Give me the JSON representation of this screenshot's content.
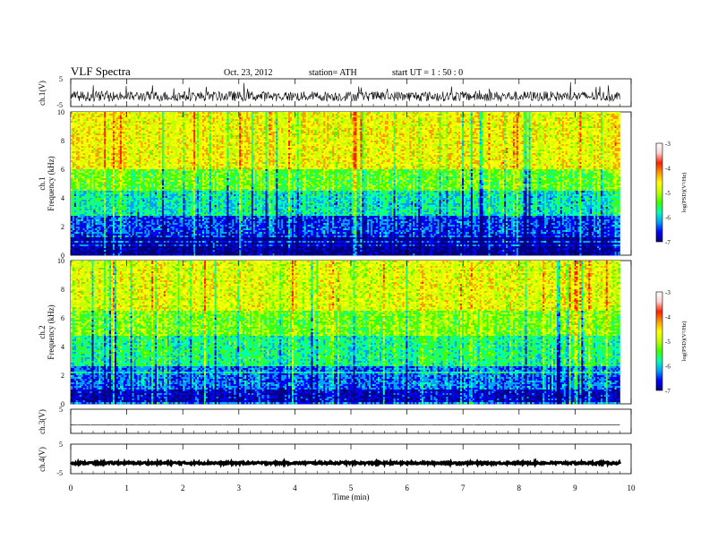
{
  "header": {
    "title": "VLF  Spectra",
    "date": "Oct. 23, 2012",
    "station": "station= ATH",
    "start": "start  UT  =   1  : 50 : 0"
  },
  "chart_data": [
    {
      "type": "line",
      "name": "ch1-waveform",
      "ylabel": "ch.1(V)",
      "ylim": [
        -5,
        5
      ],
      "y_ticks": [
        "5",
        "-5"
      ],
      "baseline": -1.3,
      "noise_amplitude": 1.8
    },
    {
      "type": "heatmap",
      "name": "ch1-spectrogram",
      "ylabel_lines": [
        "ch.1",
        "Frequency  (kHz)"
      ],
      "ylim": [
        0,
        10
      ],
      "y_ticks": [
        "0",
        "2",
        "4",
        "6",
        "8",
        "10"
      ],
      "colorbar": {
        "label": "log(PSD)(V²/Hz)",
        "range": [
          -7,
          -3
        ],
        "ticks": [
          "-3",
          "-4",
          "-5",
          "-6",
          "-7"
        ],
        "colors": [
          "#000080",
          "#0000ff",
          "#00a0ff",
          "#00ffb0",
          "#40ff00",
          "#c0ff00",
          "#ffff00",
          "#ff9900",
          "#ff2000",
          "#ffd0d0",
          "#ffffff"
        ]
      },
      "bands": [
        {
          "f_min": 0.0,
          "f_max": 1.2,
          "log_psd": -6.8
        },
        {
          "f_min": 1.2,
          "f_max": 2.8,
          "log_psd": -6.2
        },
        {
          "f_min": 2.8,
          "f_max": 4.5,
          "log_psd": -5.5
        },
        {
          "f_min": 4.5,
          "f_max": 6.0,
          "log_psd": -4.9
        },
        {
          "f_min": 6.0,
          "f_max": 10.0,
          "log_psd": -4.2
        }
      ]
    },
    {
      "type": "heatmap",
      "name": "ch2-spectrogram",
      "ylabel_lines": [
        "ch.2",
        "Frequency  (kHz)"
      ],
      "ylim": [
        0,
        10
      ],
      "y_ticks": [
        "0",
        "2",
        "4",
        "6",
        "8",
        "10"
      ],
      "colorbar": {
        "label": "log(PSD)(V²/Hz)",
        "range": [
          -7,
          -3
        ],
        "ticks": [
          "-3",
          "-4",
          "-5",
          "-6",
          "-7"
        ],
        "colors": [
          "#000080",
          "#0000ff",
          "#00a0ff",
          "#00ffb0",
          "#40ff00",
          "#c0ff00",
          "#ffff00",
          "#ff9900",
          "#ff2000",
          "#ffd0d0",
          "#ffffff"
        ]
      },
      "bands": [
        {
          "f_min": 0.0,
          "f_max": 1.0,
          "log_psd": -6.5
        },
        {
          "f_min": 1.0,
          "f_max": 2.6,
          "log_psd": -6.0
        },
        {
          "f_min": 2.6,
          "f_max": 4.8,
          "log_psd": -5.3
        },
        {
          "f_min": 4.8,
          "f_max": 6.5,
          "log_psd": -4.8
        },
        {
          "f_min": 6.5,
          "f_max": 10.0,
          "log_psd": -4.3
        }
      ]
    },
    {
      "type": "line",
      "name": "ch3-waveform",
      "ylabel": "ch.3(V)",
      "ylim": [
        -5,
        5
      ],
      "y_ticks": [
        "5",
        "-5"
      ],
      "baseline": -1.5,
      "noise_amplitude": 0.1
    },
    {
      "type": "line",
      "name": "ch4-waveform",
      "ylabel": "ch.4(V)",
      "ylim": [
        -5,
        5
      ],
      "y_ticks": [
        "5",
        "-5"
      ],
      "baseline": -1.4,
      "noise_amplitude": 0.35
    }
  ],
  "x_axis": {
    "label": "Time  (min)",
    "range": [
      0,
      10
    ],
    "data_end": 9.8,
    "ticks": [
      "0",
      "1",
      "2",
      "3",
      "4",
      "5",
      "6",
      "7",
      "8",
      "9",
      "10"
    ]
  }
}
